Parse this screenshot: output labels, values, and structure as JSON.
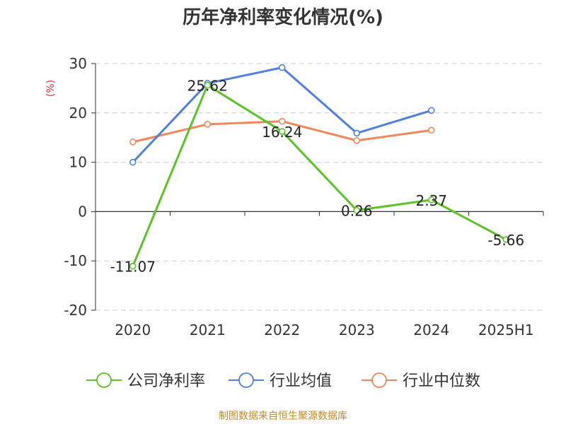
{
  "chart_data": {
    "type": "line",
    "title": "历年净利率变化情况(%)",
    "ylabel": "(%)",
    "categories": [
      "2020",
      "2021",
      "2022",
      "2023",
      "2024",
      "2025H1"
    ],
    "y_ticks": [
      "30",
      "20",
      "10",
      "0",
      "-10",
      "-20"
    ],
    "ylim": [
      -20,
      30
    ],
    "grid": true,
    "legend_position": "bottom",
    "series": [
      {
        "name": "公司净利率",
        "color": "#5cc227",
        "values": [
          -11.07,
          25.62,
          16.24,
          0.26,
          2.37,
          -5.66
        ],
        "data_labels": [
          "-11.07",
          "25.62",
          "16.24",
          "0.26",
          "2.37",
          "-5.66"
        ]
      },
      {
        "name": "行业均值",
        "color": "#4f7fe0",
        "values": [
          10.0,
          26.0,
          29.2,
          15.9,
          20.5,
          null
        ]
      },
      {
        "name": "行业中位数",
        "color": "#f0885a",
        "values": [
          14.1,
          17.7,
          18.3,
          14.4,
          16.5,
          null
        ]
      }
    ]
  },
  "footer": {
    "source": "制图数据来自恒生聚源数据库"
  },
  "colors": {
    "ylabel": "#e03030",
    "grid": "#cccccc",
    "axis": "#333333",
    "text": "#333333"
  }
}
